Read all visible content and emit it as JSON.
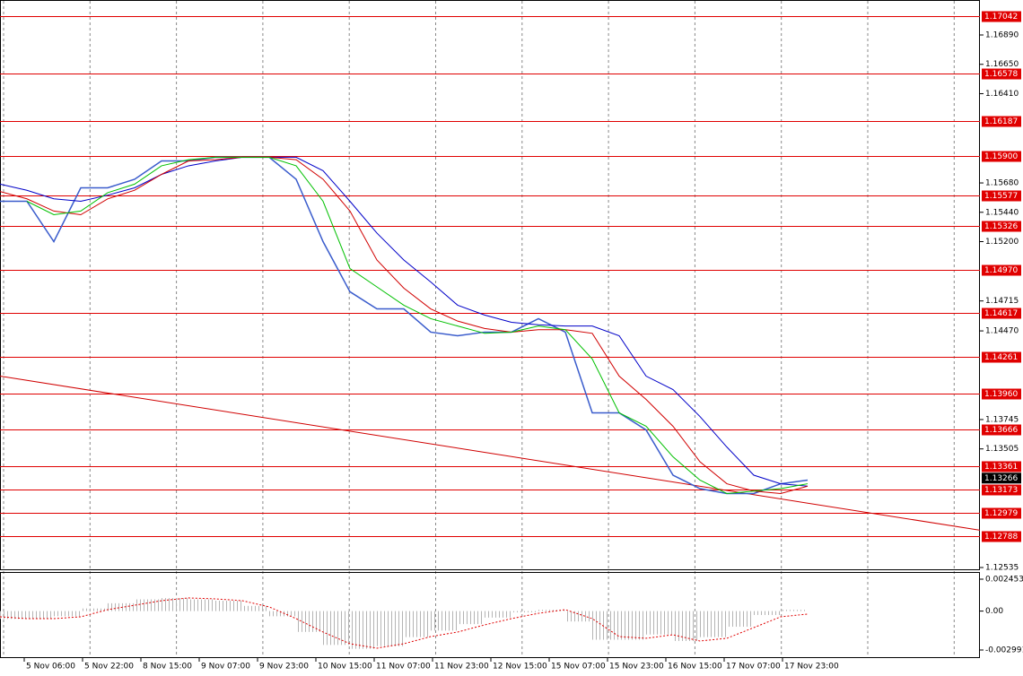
{
  "chart_data": {
    "type": "line",
    "xticklabels": [
      "5 Nov 06:00",
      "5 Nov 22:00",
      "8 Nov 15:00",
      "9 Nov 07:00",
      "9 Nov 23:00",
      "10 Nov 15:00",
      "11 Nov 07:00",
      "11 Nov 23:00",
      "12 Nov 15:00",
      "15 Nov 07:00",
      "15 Nov 23:00",
      "16 Nov 15:00",
      "17 Nov 07:00",
      "17 Nov 23:00"
    ],
    "ylim": [
      1.12513,
      1.17176
    ],
    "yticks": [
      {
        "value": 1.1689,
        "label": "1.16890"
      },
      {
        "value": 1.1665,
        "label": "1.16650"
      },
      {
        "value": 1.1641,
        "label": "1.16410"
      },
      {
        "value": 1.1568,
        "label": "1.15680"
      },
      {
        "value": 1.1544,
        "label": "1.15440"
      },
      {
        "value": 1.152,
        "label": "1.15200"
      },
      1.14715,
      {
        "value": 1.1447,
        "label": "1.14470"
      },
      1.13745,
      1.13505,
      1.12535
    ],
    "levels": [
      1.17042,
      1.16578,
      1.16187,
      {
        "value": 1.159,
        "label": "1.15900"
      },
      1.15577,
      1.15326,
      {
        "value": 1.1497,
        "label": "1.14970"
      },
      1.14617,
      1.14261,
      {
        "value": 1.1396,
        "label": "1.13960"
      },
      1.13666,
      1.13361,
      1.13173,
      1.12979,
      1.12788
    ],
    "level_color": "#e00000",
    "current": 1.13266,
    "trendline": {
      "values": [
        1.141,
        1.1284
      ],
      "color": "#d00000"
    },
    "series": [
      {
        "color": "#3a5ccc",
        "values": [
          1.1553,
          1.1553,
          1.152,
          1.1564,
          1.1564,
          1.1571,
          1.1586,
          1.1586,
          1.1589,
          1.1589,
          1.1589,
          1.1571,
          1.152,
          1.1479,
          1.1465,
          1.1465,
          1.1446,
          1.1443,
          1.1446,
          1.1446,
          1.1457,
          1.1446,
          1.138,
          1.138,
          1.1366,
          1.1329,
          1.1318,
          1.1314,
          1.1314,
          1.1322,
          1.1325
        ]
      },
      {
        "color": "#0000c8",
        "values": [
          1.1567,
          1.1562,
          1.1555,
          1.1553,
          1.1558,
          1.1564,
          1.1575,
          1.1582,
          1.1586,
          1.1589,
          1.1589,
          1.1589,
          1.1578,
          1.1553,
          1.1527,
          1.1505,
          1.1487,
          1.1468,
          1.146,
          1.1454,
          1.1452,
          1.1451,
          1.1451,
          1.1443,
          1.141,
          1.1399,
          1.1377,
          1.1352,
          1.1329,
          1.1322,
          1.132
        ]
      },
      {
        "color": "#d00000",
        "values": [
          1.1561,
          1.1555,
          1.1545,
          1.1542,
          1.1555,
          1.1562,
          1.1575,
          1.1586,
          1.1587,
          1.1589,
          1.1589,
          1.1587,
          1.1571,
          1.1545,
          1.1505,
          1.1482,
          1.1465,
          1.1455,
          1.1449,
          1.1446,
          1.1448,
          1.1448,
          1.1445,
          1.141,
          1.1391,
          1.1369,
          1.134,
          1.1322,
          1.1316,
          1.1314,
          1.132
        ]
      },
      {
        "color": "#00c000",
        "values": [
          null,
          1.1553,
          1.1542,
          1.1545,
          1.156,
          1.1567,
          1.1582,
          1.1587,
          1.1589,
          1.1589,
          1.1589,
          1.1582,
          1.1553,
          1.1498,
          1.1483,
          1.1468,
          1.1457,
          1.1451,
          1.1445,
          1.1446,
          1.1451,
          1.1448,
          1.1424,
          1.138,
          1.1369,
          1.1344,
          1.1325,
          1.1314,
          1.1316,
          1.1318,
          1.1322
        ]
      }
    ],
    "macd": {
      "ylim": [
        -0.003611,
        0.003004
      ],
      "yticks": [
        {
          "value": 0.002453,
          "label": "0.002453"
        },
        {
          "value": 0,
          "label": "0.00"
        },
        {
          "value": -0.002991,
          "label": "-0.002991"
        }
      ],
      "hist_color": "#b4b4b4",
      "histogram": [
        -0.0006,
        -0.0006,
        -0.0004,
        0.0002,
        0.0006,
        0.0009,
        0.001,
        0.0009,
        0.0008,
        0.0004,
        -0.0004,
        -0.0016,
        -0.0026,
        -0.0029,
        -0.0027,
        -0.002,
        -0.0015,
        -0.001,
        -0.0005,
        -0.0001,
        0.0001,
        -0.0008,
        -0.0022,
        -0.0022,
        -0.0018,
        -0.0023,
        -0.002,
        -0.0012,
        -0.0003,
        0.0001,
        null
      ],
      "signal_color": "#e00000",
      "signal": [
        -0.00044,
        -0.00058,
        -0.00058,
        -0.00044,
        0.00011,
        0.00045,
        0.0008,
        0.00101,
        0.00094,
        0.0008,
        0.00032,
        -0.00058,
        -0.00161,
        -0.00251,
        -0.00285,
        -0.00251,
        -0.00196,
        -0.00161,
        -0.00106,
        -0.00058,
        -0.00017,
        0.00011,
        -0.00058,
        -0.00196,
        -0.00209,
        -0.00182,
        -0.0023,
        -0.00209,
        -0.00127,
        -0.00044,
        -0.00023
      ]
    }
  }
}
